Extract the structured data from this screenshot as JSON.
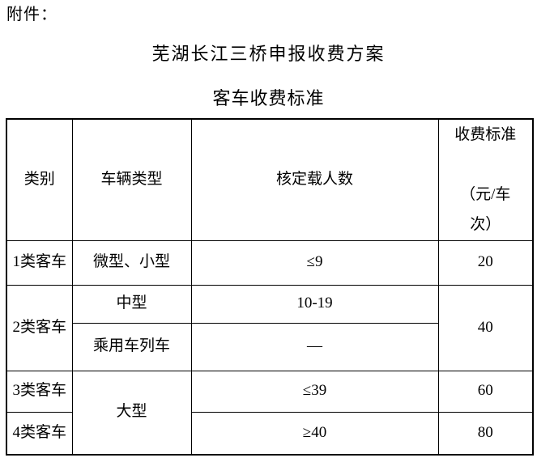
{
  "page": {
    "attachment_label": "附件：",
    "title": "芜湖长江三桥申报收费方案",
    "subtitle": "客车收费标准"
  },
  "table": {
    "headers": {
      "category": "类别",
      "vehicle_type": "车辆类型",
      "approved_passengers": "核定载人数",
      "fee_standard": "收费标准\n\n（元/车\n次）"
    },
    "rows": {
      "r1": {
        "category": "1类客车",
        "vehicle_type": "微型、小型",
        "passengers": "≤9",
        "fee": "20"
      },
      "r2": {
        "category": "2类客车",
        "vehicle_type": "中型",
        "passengers": "10-19",
        "fee": "40"
      },
      "r3": {
        "vehicle_type": "乘用车列车",
        "passengers": "—"
      },
      "r4": {
        "category": "3类客车",
        "vehicle_type": "大型",
        "passengers": "≤39",
        "fee": "60"
      },
      "r5": {
        "category": "4类客车",
        "passengers": "≥40",
        "fee": "80"
      }
    }
  },
  "colors": {
    "text": "#000000",
    "border": "#000000",
    "background": "#ffffff"
  }
}
